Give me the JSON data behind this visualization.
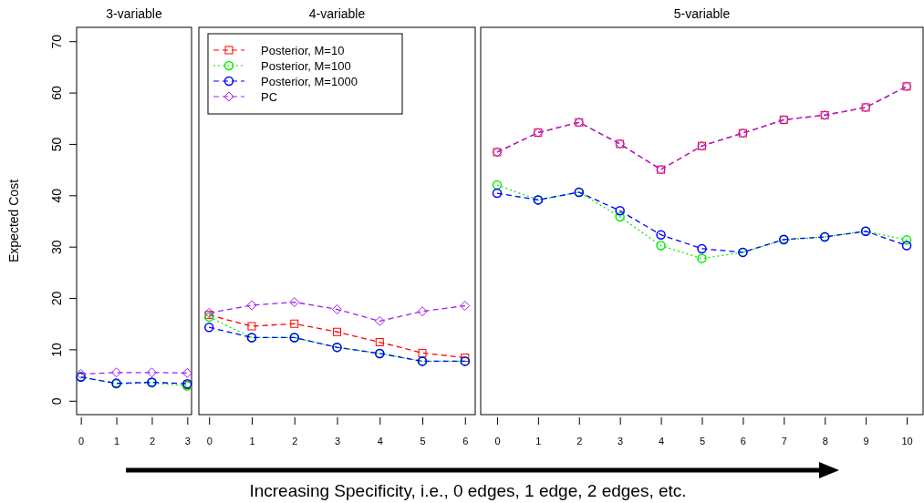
{
  "chart_data": [
    {
      "type": "line",
      "title": "3-variable",
      "ylabel": "Expected Cost",
      "x": [
        0,
        1,
        2,
        3
      ],
      "xlim": [
        -0.12,
        3.12
      ],
      "xticks": [
        0,
        1,
        2,
        3
      ],
      "ylim": [
        -2.7,
        72.7
      ],
      "yticks": [
        0,
        10,
        20,
        30,
        40,
        50,
        60,
        70
      ],
      "legend": false,
      "series": [
        {
          "color": "#ff0000",
          "marker": "square",
          "line_style": "dashed",
          "values": [
            null,
            null,
            null,
            3.1
          ]
        },
        {
          "color": "#00ee00",
          "marker": "circle",
          "line_style": "dotted",
          "values": [
            4.7,
            3.3,
            3.5,
            2.9
          ]
        },
        {
          "color": "#0000ff",
          "marker": "circle",
          "line_style": "dashed",
          "values": [
            4.6,
            3.4,
            3.6,
            3.3
          ]
        },
        {
          "color": "#a020f0",
          "marker": "diamond",
          "line_style": "dashed",
          "values": [
            5.2,
            5.5,
            5.5,
            5.4
          ]
        }
      ]
    },
    {
      "type": "line",
      "title": "4-variable",
      "xlabel": "Increasing Specificity, i.e., 0 edges, 1 edge, 2 edges, etc.",
      "x": [
        0,
        1,
        2,
        3,
        4,
        5,
        6
      ],
      "xlim": [
        -0.24,
        6.24
      ],
      "xticks": [
        0,
        1,
        2,
        3,
        4,
        5,
        6
      ],
      "ylim": [
        -2.7,
        72.7
      ],
      "tick_labels": "x",
      "legend": "top left",
      "series": [
        {
          "name": "Posterior, M=10",
          "color": "#ff0000",
          "marker": "square",
          "line_style": "dashed",
          "values": [
            16.7,
            14.5,
            15.0,
            13.4,
            11.4,
            9.3,
            8.4
          ]
        },
        {
          "name": "Posterior, M=100",
          "color": "#00ee00",
          "marker": "circle",
          "line_style": "dotted",
          "values": [
            16.3,
            12.3,
            12.3,
            10.4,
            9.2,
            7.7,
            7.7
          ]
        },
        {
          "name": "Posterior, M=1000",
          "color": "#0000ff",
          "marker": "circle",
          "line_style": "dashed",
          "values": [
            14.3,
            12.3,
            12.3,
            10.4,
            9.2,
            7.7,
            7.7
          ]
        },
        {
          "name": "PC",
          "color": "#a020f0",
          "marker": "diamond",
          "line_style": "dashed",
          "values": [
            17.1,
            18.6,
            19.2,
            17.8,
            15.5,
            17.4,
            18.5
          ]
        }
      ]
    },
    {
      "type": "line",
      "title": "5-variable",
      "x": [
        0,
        1,
        2,
        3,
        4,
        5,
        6,
        7,
        8,
        9,
        10
      ],
      "xlim": [
        -0.4,
        10.4
      ],
      "xticks": [
        0,
        1,
        2,
        3,
        4,
        5,
        6,
        7,
        8,
        9,
        10
      ],
      "ylim": [
        -2.7,
        72.7
      ],
      "tick_labels": "x",
      "legend": false,
      "series": [
        {
          "color": "#ff0000",
          "marker": "square",
          "line_style": "dashed",
          "values": [
            48.4,
            52.2,
            54.2,
            50.0,
            45.0,
            49.6,
            52.1,
            54.7,
            55.6,
            57.1,
            61.2
          ]
        },
        {
          "color": "#00ee00",
          "marker": "circle",
          "line_style": "dotted",
          "values": [
            42.0,
            39.1,
            40.6,
            35.8,
            30.2,
            27.7,
            28.9,
            31.3,
            31.9,
            33.0,
            31.3
          ]
        },
        {
          "color": "#0000ff",
          "marker": "circle",
          "line_style": "dashed",
          "values": [
            40.4,
            39.1,
            40.6,
            37.0,
            32.3,
            29.6,
            28.9,
            31.4,
            31.9,
            33.0,
            30.2
          ]
        },
        {
          "color": "#a020f0",
          "marker": "diamond",
          "line_style": "dashed",
          "values": [
            48.4,
            52.2,
            54.2,
            50.0,
            45.0,
            49.6,
            52.1,
            54.7,
            55.6,
            57.1,
            61.2
          ]
        }
      ]
    }
  ]
}
